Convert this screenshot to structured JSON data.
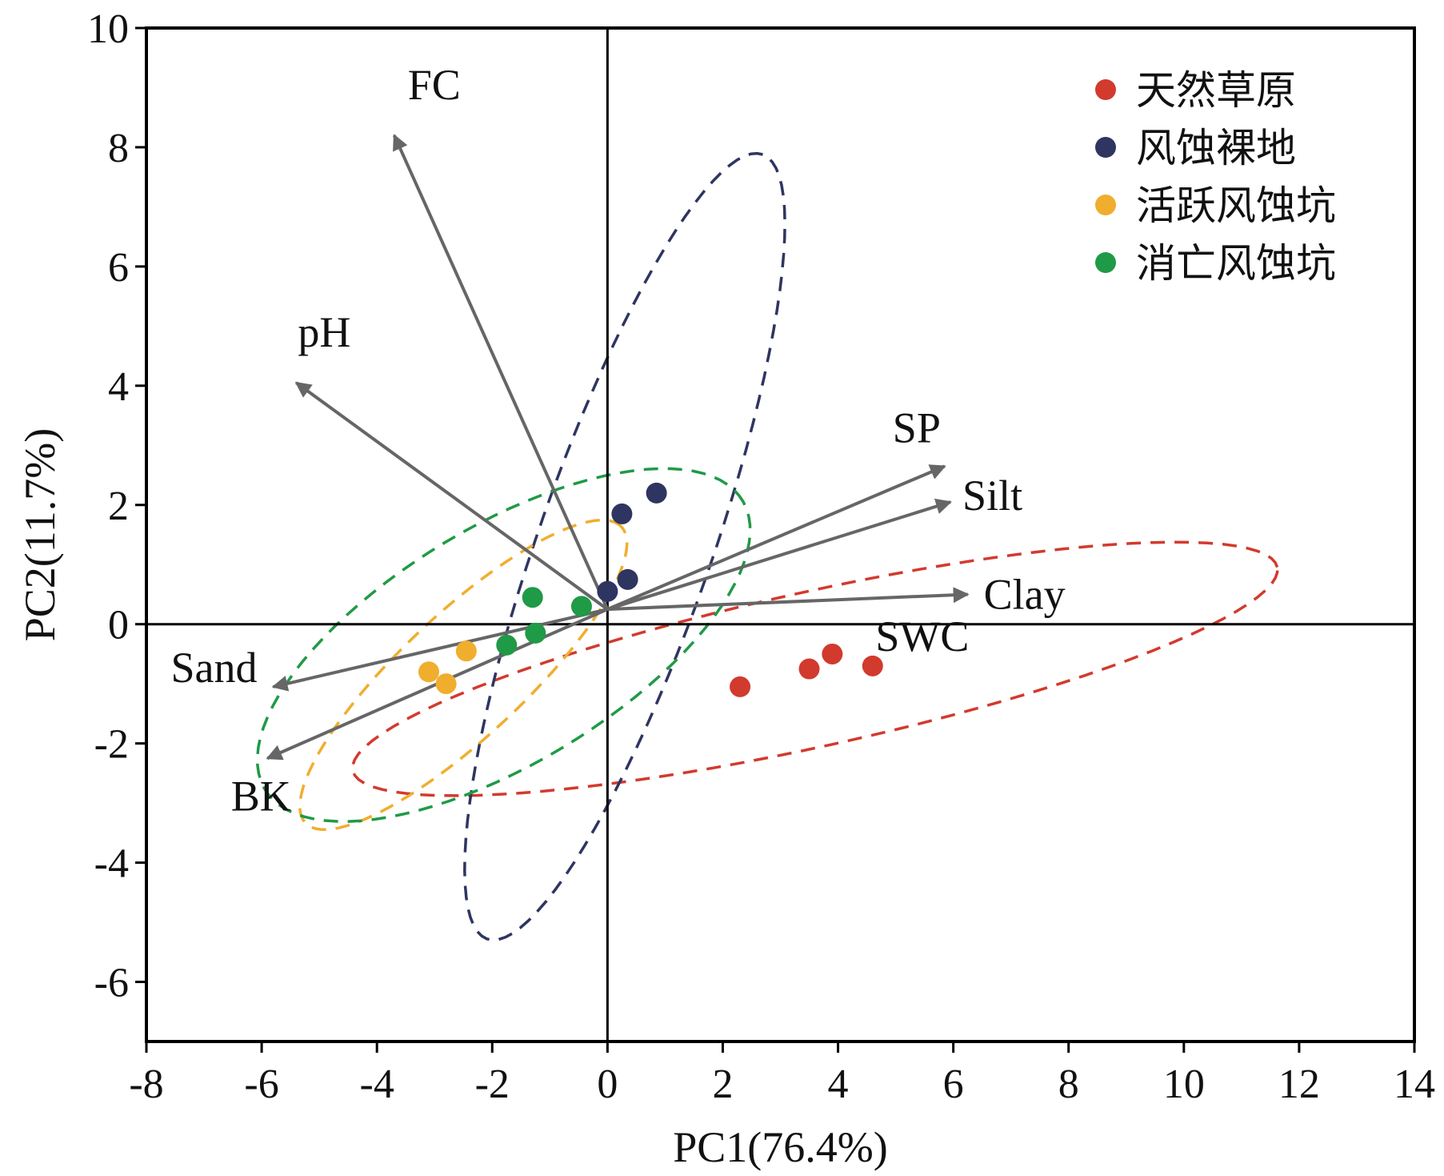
{
  "chart_data": {
    "type": "scatter",
    "xlabel": "PC1(76.4%)",
    "ylabel": "PC2(11.7%)",
    "xlim": [
      -8,
      14
    ],
    "ylim": [
      -7,
      10
    ],
    "xticks": [
      -8,
      -6,
      -4,
      -2,
      0,
      2,
      4,
      6,
      8,
      10,
      12,
      14
    ],
    "yticks": [
      -6,
      -4,
      -2,
      0,
      2,
      4,
      6,
      8,
      10
    ],
    "grid": false,
    "legend_position": "top-right",
    "series": [
      {
        "name": "天然草原",
        "color": "#d23a2e",
        "points": [
          [
            2.3,
            -1.05
          ],
          [
            3.5,
            -0.75
          ],
          [
            3.9,
            -0.5
          ],
          [
            4.6,
            -0.7
          ]
        ],
        "ellipse": {
          "center": [
            3.6,
            -0.75
          ],
          "semi_major": 8.2,
          "semi_minor": 1.3,
          "angle_deg": 12
        }
      },
      {
        "name": "风蚀裸地",
        "color": "#2e3560",
        "points": [
          [
            0.0,
            0.55
          ],
          [
            0.25,
            1.85
          ],
          [
            0.35,
            0.75
          ],
          [
            0.85,
            2.2
          ]
        ],
        "ellipse": {
          "center": [
            0.3,
            1.3
          ],
          "semi_major": 7.0,
          "semi_minor": 1.5,
          "angle_deg": 70
        }
      },
      {
        "name": "活跃风蚀坑",
        "color": "#f0ae2e",
        "points": [
          [
            -3.1,
            -0.8
          ],
          [
            -2.8,
            -1.0
          ],
          [
            -2.45,
            -0.45
          ]
        ],
        "ellipse": {
          "center": [
            -2.5,
            -0.85
          ],
          "semi_major": 3.7,
          "semi_minor": 1.05,
          "angle_deg": 42
        }
      },
      {
        "name": "消亡风蚀坑",
        "color": "#1f9a46",
        "points": [
          [
            -1.3,
            0.45
          ],
          [
            -1.25,
            -0.15
          ],
          [
            -1.75,
            -0.35
          ],
          [
            -0.45,
            0.3
          ]
        ],
        "ellipse": {
          "center": [
            -1.8,
            -0.35
          ],
          "semi_major": 4.8,
          "semi_minor": 2.0,
          "angle_deg": 30
        }
      }
    ],
    "vectors": [
      {
        "name": "FC",
        "x": -3.7,
        "y": 8.2
      },
      {
        "name": "pH",
        "x": -5.4,
        "y": 4.05
      },
      {
        "name": "SP",
        "x": 5.85,
        "y": 2.65
      },
      {
        "name": "Silt",
        "x": 5.95,
        "y": 2.05
      },
      {
        "name": "Clay",
        "x": 6.25,
        "y": 0.5
      },
      {
        "name": "SWC",
        "x": 0,
        "y": 0
      },
      {
        "name": "Sand",
        "x": -5.8,
        "y": -1.05
      },
      {
        "name": "BK",
        "x": -5.9,
        "y": -2.25
      }
    ]
  }
}
